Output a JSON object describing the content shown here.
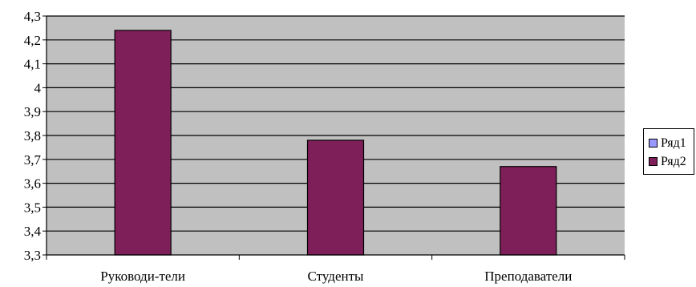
{
  "chart_data": {
    "type": "bar",
    "title": "",
    "xlabel": "",
    "ylabel": "",
    "categories": [
      "Руководи-тели",
      "Студенты",
      "Преподаватели"
    ],
    "series": [
      {
        "name": "Ряд1",
        "color": "#9999ff",
        "values": [
          null,
          null,
          null
        ]
      },
      {
        "name": "Ряд2",
        "color": "#7f1f5a",
        "values": [
          4.24,
          3.78,
          3.67
        ]
      }
    ],
    "ylim": [
      3.3,
      4.3
    ],
    "y_ticks": [
      "3,3",
      "3,4",
      "3,5",
      "3,6",
      "3,7",
      "3,8",
      "3,9",
      "4",
      "4,1",
      "4,2",
      "4,3"
    ],
    "grid": true,
    "plot_background": "#c0c0c0",
    "legend_position": "right"
  }
}
